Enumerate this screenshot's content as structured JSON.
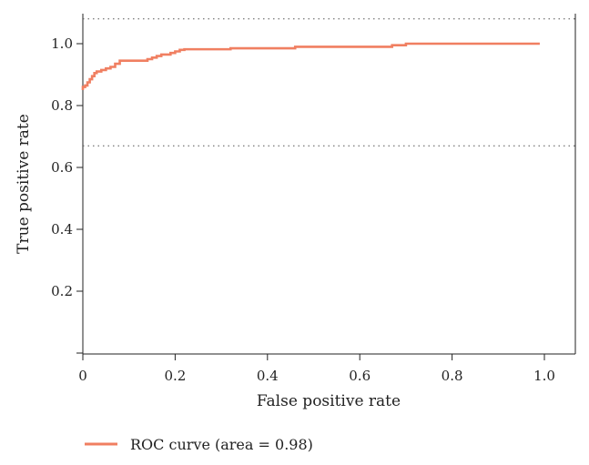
{
  "chart_data": {
    "type": "line",
    "title": "",
    "xlabel": "False positive rate",
    "ylabel": "True positive rate",
    "xlim": [
      0,
      1.06
    ],
    "ylim": [
      0,
      1.1
    ],
    "x_ticks": [
      "0",
      "0.2",
      "0.4",
      "0.6",
      "0.8",
      "1.0"
    ],
    "y_ticks": [
      "0.2",
      "0.4",
      "0.6",
      "0.8",
      "1.0"
    ],
    "reference_lines": [
      1.08,
      0.67
    ],
    "legend_position": "bottom-left",
    "series": [
      {
        "name": "ROC curve (area = 0.98)",
        "color": "#f07f61",
        "x": [
          0.0,
          0.0,
          0.005,
          0.005,
          0.01,
          0.01,
          0.015,
          0.015,
          0.02,
          0.02,
          0.025,
          0.025,
          0.03,
          0.03,
          0.04,
          0.04,
          0.05,
          0.05,
          0.06,
          0.06,
          0.07,
          0.07,
          0.08,
          0.08,
          0.14,
          0.14,
          0.15,
          0.15,
          0.16,
          0.16,
          0.17,
          0.17,
          0.19,
          0.19,
          0.2,
          0.2,
          0.21,
          0.21,
          0.22,
          0.22,
          0.32,
          0.32,
          0.46,
          0.46,
          0.67,
          0.67,
          0.7,
          0.7,
          0.99
        ],
        "y": [
          0.85,
          0.86,
          0.86,
          0.865,
          0.865,
          0.875,
          0.875,
          0.885,
          0.885,
          0.895,
          0.895,
          0.905,
          0.905,
          0.91,
          0.91,
          0.915,
          0.915,
          0.92,
          0.92,
          0.925,
          0.925,
          0.935,
          0.935,
          0.945,
          0.945,
          0.95,
          0.95,
          0.955,
          0.955,
          0.96,
          0.96,
          0.965,
          0.965,
          0.97,
          0.97,
          0.975,
          0.975,
          0.98,
          0.98,
          0.982,
          0.982,
          0.985,
          0.985,
          0.99,
          0.99,
          0.995,
          0.995,
          1.0,
          1.0
        ]
      }
    ]
  }
}
